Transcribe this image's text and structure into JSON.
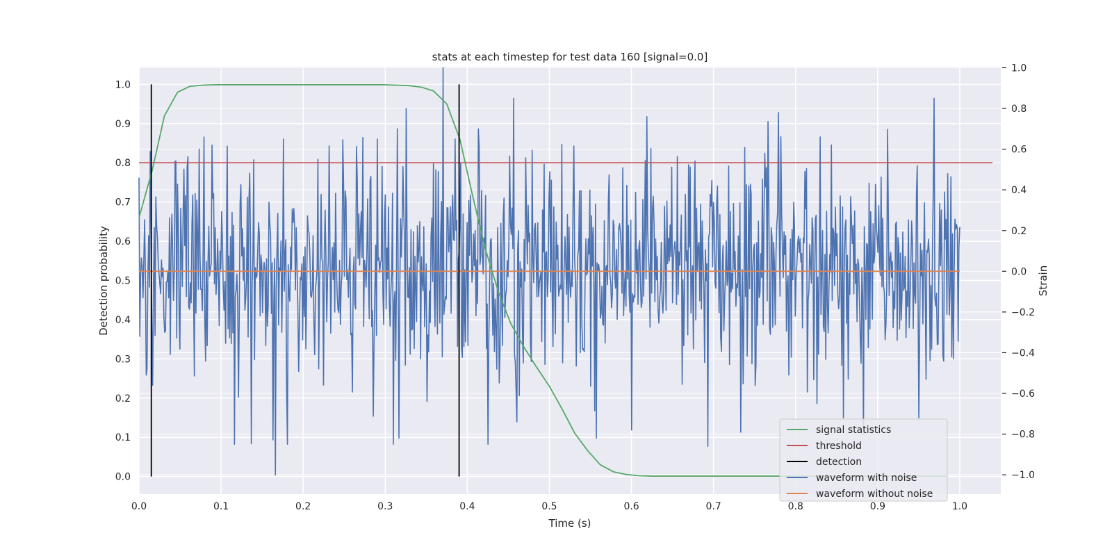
{
  "chart_data": {
    "type": "line",
    "title": "stats at each timestep for test data 160 [signal=0.0]",
    "xlabel": "Time (s)",
    "ylabel": "Detection probability",
    "ylabel_right": "Strain",
    "xlim": [
      0.0,
      1.05
    ],
    "ylim": [
      -0.045,
      1.045
    ],
    "ylim_right": [
      -1.095,
      1.005
    ],
    "x_ticks": [
      0.0,
      0.1,
      0.2,
      0.3,
      0.4,
      0.5,
      0.6,
      0.7,
      0.8,
      0.9,
      1.0
    ],
    "x_tick_labels": [
      "0.0",
      "0.1",
      "0.2",
      "0.3",
      "0.4",
      "0.5",
      "0.6",
      "0.7",
      "0.8",
      "0.9",
      "1.0"
    ],
    "y_ticks": [
      0.0,
      0.1,
      0.2,
      0.3,
      0.4,
      0.5,
      0.6,
      0.7,
      0.8,
      0.9,
      1.0
    ],
    "y_tick_labels": [
      "0.0",
      "0.1",
      "0.2",
      "0.3",
      "0.4",
      "0.5",
      "0.6",
      "0.7",
      "0.8",
      "0.9",
      "1.0"
    ],
    "y_right_ticks": [
      -1.0,
      -0.8,
      -0.6,
      -0.4,
      -0.2,
      0.0,
      0.2,
      0.4,
      0.6,
      0.8,
      1.0
    ],
    "y_right_tick_labels": [
      "−1.0",
      "−0.8",
      "−0.6",
      "−0.4",
      "−0.2",
      "0.0",
      "0.2",
      "0.4",
      "0.6",
      "0.8",
      "1.0"
    ],
    "grid": true,
    "legend_position": "lower-right",
    "legend": [
      {
        "label": "signal statistics",
        "color": "#55a868"
      },
      {
        "label": "threshold",
        "color": "#c44e52"
      },
      {
        "label": "detection",
        "color": "#000000"
      },
      {
        "label": "waveform with noise",
        "color": "#4c72b0"
      },
      {
        "label": "waveform without noise",
        "color": "#dd8452"
      }
    ],
    "series": [
      {
        "name": "signal statistics",
        "axis": "left",
        "color": "#55a868",
        "x": [
          0.0,
          0.016,
          0.031,
          0.047,
          0.062,
          0.078,
          0.094,
          0.109,
          0.125,
          0.141,
          0.156,
          0.172,
          0.188,
          0.203,
          0.219,
          0.234,
          0.25,
          0.266,
          0.281,
          0.297,
          0.312,
          0.328,
          0.344,
          0.359,
          0.375,
          0.391,
          0.406,
          0.422,
          0.438,
          0.453,
          0.469,
          0.484,
          0.5,
          0.516,
          0.531,
          0.547,
          0.562,
          0.578,
          0.594,
          0.609,
          0.625,
          0.7,
          0.8,
          0.9,
          0.985
        ],
        "y": [
          0.66,
          0.78,
          0.92,
          0.98,
          0.995,
          0.998,
          0.999,
          0.999,
          0.999,
          0.999,
          0.999,
          0.999,
          0.999,
          0.999,
          0.999,
          0.999,
          0.999,
          0.999,
          0.999,
          0.999,
          0.998,
          0.997,
          0.993,
          0.983,
          0.95,
          0.86,
          0.72,
          0.58,
          0.47,
          0.39,
          0.33,
          0.28,
          0.23,
          0.17,
          0.11,
          0.065,
          0.03,
          0.012,
          0.005,
          0.002,
          0.001,
          0.001,
          0.001,
          0.001,
          0.001
        ]
      },
      {
        "name": "threshold",
        "axis": "left",
        "color": "#c44e52",
        "x": [
          0.0,
          1.04
        ],
        "y": [
          0.8,
          0.8
        ]
      },
      {
        "name": "detection",
        "axis": "left",
        "color": "#000000",
        "segments": [
          {
            "x": 0.015,
            "y0": 0.0,
            "y1": 1.0
          },
          {
            "x": 0.39,
            "y0": 0.0,
            "y1": 1.0
          }
        ]
      },
      {
        "name": "waveform with noise",
        "axis": "right",
        "color": "#4c72b0",
        "x_start": 0.0,
        "x_end": 1.0,
        "n_points": 1024,
        "std": 0.27,
        "peaks": [
          {
            "x": 0.0,
            "y": 0.46
          },
          {
            "x": 0.017,
            "y": -0.56
          },
          {
            "x": 0.073,
            "y": 0.6
          },
          {
            "x": 0.089,
            "y": 0.62
          },
          {
            "x": 0.116,
            "y": -0.85
          },
          {
            "x": 0.166,
            "y": -1.0
          },
          {
            "x": 0.176,
            "y": 0.65
          },
          {
            "x": 0.218,
            "y": 0.55
          },
          {
            "x": 0.29,
            "y": 0.65
          },
          {
            "x": 0.315,
            "y": 0.7
          },
          {
            "x": 0.317,
            "y": -0.82
          },
          {
            "x": 0.326,
            "y": 0.8
          },
          {
            "x": 0.351,
            "y": -0.64
          },
          {
            "x": 0.37,
            "y": 1.0
          },
          {
            "x": 0.385,
            "y": 0.65
          },
          {
            "x": 0.46,
            "y": -0.74
          },
          {
            "x": 0.557,
            "y": -0.82
          },
          {
            "x": 0.6,
            "y": -0.78
          },
          {
            "x": 0.619,
            "y": 0.76
          },
          {
            "x": 0.693,
            "y": -0.86
          },
          {
            "x": 0.762,
            "y": 0.58
          },
          {
            "x": 0.83,
            "y": 0.66
          },
          {
            "x": 0.858,
            "y": -0.72
          },
          {
            "x": 0.883,
            "y": 0.94
          },
          {
            "x": 0.883,
            "y": -0.8
          },
          {
            "x": 0.95,
            "y": -0.72
          },
          {
            "x": 0.985,
            "y": 0.48
          }
        ]
      },
      {
        "name": "waveform without noise",
        "axis": "right",
        "color": "#dd8452",
        "x": [
          0.0,
          1.0
        ],
        "y": [
          0.0,
          0.0
        ]
      }
    ]
  }
}
